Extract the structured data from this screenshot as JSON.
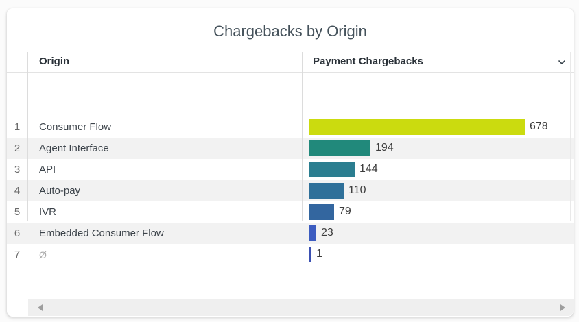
{
  "title": "Chargebacks by Origin",
  "table": {
    "header": {
      "origin_label": "Origin",
      "value_label": "Payment Chargebacks",
      "sort_icon": "chevron-down"
    },
    "max_value": 678,
    "rows": [
      {
        "index": "1",
        "origin": "Consumer Flow",
        "value": 678,
        "color": "#cbdb0f",
        "is_null": false
      },
      {
        "index": "2",
        "origin": "Agent Interface",
        "value": 194,
        "color": "#21897b",
        "is_null": false
      },
      {
        "index": "3",
        "origin": "API",
        "value": 144,
        "color": "#2b7e90",
        "is_null": false
      },
      {
        "index": "4",
        "origin": "Auto-pay",
        "value": 110,
        "color": "#2f7099",
        "is_null": false
      },
      {
        "index": "5",
        "origin": "IVR",
        "value": 79,
        "color": "#33669f",
        "is_null": false
      },
      {
        "index": "6",
        "origin": "Embedded Consumer Flow",
        "value": 23,
        "color": "#3c5cc0",
        "is_null": false
      },
      {
        "index": "7",
        "origin": "Ø",
        "value": 1,
        "color": "#3b50b2",
        "is_null": true
      }
    ]
  },
  "scrollbar": {
    "type": "horizontal"
  },
  "colors": {
    "title_text": "#45525b",
    "header_text": "#2a3138",
    "row_text": "#3c434a",
    "index_text": "#6a6a6a",
    "null_text": "#ababab",
    "alt_row_bg": "#f2f2f2",
    "divider": "#dcdcdc",
    "scroll_track": "#efefef",
    "scroll_arrow": "#9e9e9e"
  },
  "chart_data": {
    "type": "bar",
    "orientation": "horizontal",
    "title": "Chargebacks by Origin",
    "categories": [
      "Consumer Flow",
      "Agent Interface",
      "API",
      "Auto-pay",
      "IVR",
      "Embedded Consumer Flow",
      "Ø"
    ],
    "values": [
      678,
      194,
      144,
      110,
      79,
      23,
      1
    ],
    "series_label": "Payment Chargebacks",
    "bar_colors": [
      "#cbdb0f",
      "#21897b",
      "#2b7e90",
      "#2f7099",
      "#33669f",
      "#3c5cc0",
      "#3b50b2"
    ],
    "xlabel": "",
    "ylabel": "Origin",
    "xlim": [
      0,
      678
    ],
    "data_labels": "end-of-bar",
    "legend": "none",
    "grid": "off"
  }
}
